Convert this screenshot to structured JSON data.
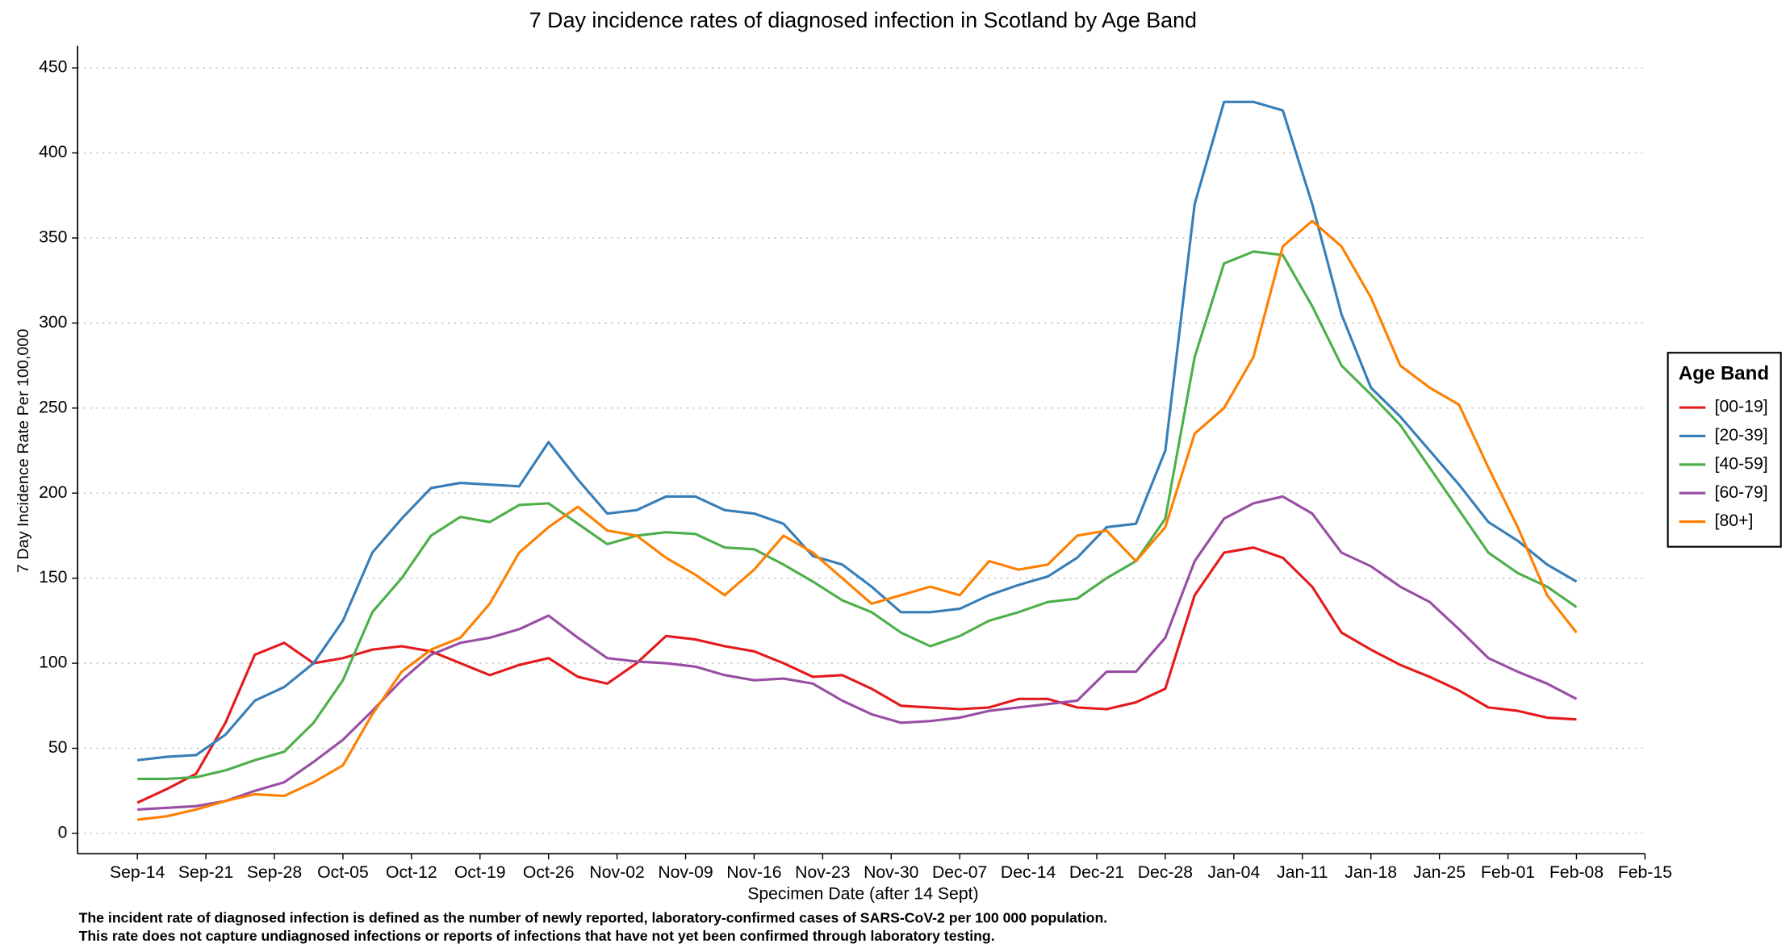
{
  "chart_data": {
    "type": "line",
    "title": "7 Day incidence rates of diagnosed infection in Scotland by Age Band",
    "x_label": "Specimen Date (after 14 Sept)",
    "y_label": "7 Day Incidence Rate Per 100,000",
    "footnote": [
      "The incident rate of diagnosed infection is defined as the number of newly reported, laboratory-confirmed cases of SARS-CoV-2 per 100 000 population.",
      "This rate does not capture undiagnosed infections or reports of infections that have not yet been confirmed through laboratory testing."
    ],
    "legend_title": "Age Band",
    "legend": "right",
    "grid": true,
    "xlim": [
      -6.1,
      154
    ],
    "ylim": [
      -12,
      463
    ],
    "yticks": [
      0,
      50,
      100,
      150,
      200,
      250,
      300,
      350,
      400,
      450
    ],
    "xticks": [
      {
        "value": 0,
        "label": "Sep-14"
      },
      {
        "value": 7,
        "label": "Sep-21"
      },
      {
        "value": 14,
        "label": "Sep-28"
      },
      {
        "value": 21,
        "label": "Oct-05"
      },
      {
        "value": 28,
        "label": "Oct-12"
      },
      {
        "value": 35,
        "label": "Oct-19"
      },
      {
        "value": 42,
        "label": "Oct-26"
      },
      {
        "value": 49,
        "label": "Nov-02"
      },
      {
        "value": 56,
        "label": "Nov-09"
      },
      {
        "value": 63,
        "label": "Nov-16"
      },
      {
        "value": 70,
        "label": "Nov-23"
      },
      {
        "value": 77,
        "label": "Nov-30"
      },
      {
        "value": 84,
        "label": "Dec-07"
      },
      {
        "value": 91,
        "label": "Dec-14"
      },
      {
        "value": 98,
        "label": "Dec-21"
      },
      {
        "value": 105,
        "label": "Dec-28"
      },
      {
        "value": 112,
        "label": "Jan-04"
      },
      {
        "value": 119,
        "label": "Jan-11"
      },
      {
        "value": 126,
        "label": "Jan-18"
      },
      {
        "value": 133,
        "label": "Jan-25"
      },
      {
        "value": 140,
        "label": "Feb-01"
      },
      {
        "value": 147,
        "label": "Feb-08"
      },
      {
        "value": 154,
        "label": "Feb-15"
      }
    ],
    "x": [
      0,
      3,
      6,
      9,
      12,
      15,
      18,
      21,
      24,
      27,
      30,
      33,
      36,
      39,
      42,
      45,
      48,
      51,
      54,
      57,
      60,
      63,
      66,
      69,
      72,
      75,
      78,
      81,
      84,
      87,
      90,
      93,
      96,
      99,
      102,
      105,
      108,
      111,
      114,
      117,
      120,
      123,
      126,
      129,
      132,
      135,
      138,
      141,
      144,
      147
    ],
    "series": [
      {
        "name": "[00-19]",
        "color": "#e41a1c",
        "values": [
          18,
          26,
          35,
          65,
          105,
          112,
          100,
          103,
          108,
          110,
          107,
          100,
          93,
          99,
          103,
          92,
          88,
          100,
          116,
          114,
          110,
          107,
          100,
          92,
          93,
          85,
          75,
          74,
          73,
          74,
          79,
          79,
          74,
          73,
          77,
          85,
          140,
          165,
          168,
          162,
          145,
          118,
          108,
          99,
          92,
          84,
          74,
          72,
          68,
          67
        ]
      },
      {
        "name": "[20-39]",
        "color": "#377eb8",
        "values": [
          43,
          45,
          46,
          58,
          78,
          86,
          100,
          125,
          165,
          185,
          203,
          206,
          205,
          204,
          230,
          208,
          188,
          190,
          198,
          198,
          190,
          188,
          182,
          163,
          158,
          145,
          130,
          130,
          132,
          140,
          146,
          151,
          162,
          180,
          182,
          225,
          370,
          430,
          430,
          425,
          370,
          305,
          262,
          245,
          225,
          205,
          183,
          172,
          158,
          148
        ]
      },
      {
        "name": "[40-59]",
        "color": "#4daf4a",
        "values": [
          32,
          32,
          33,
          37,
          43,
          48,
          65,
          90,
          130,
          150,
          175,
          186,
          183,
          193,
          194,
          182,
          170,
          175,
          177,
          176,
          168,
          167,
          158,
          148,
          137,
          130,
          118,
          110,
          116,
          125,
          130,
          136,
          138,
          150,
          160,
          185,
          280,
          335,
          342,
          340,
          310,
          275,
          258,
          240,
          215,
          190,
          165,
          153,
          145,
          133
        ]
      },
      {
        "name": "[60-79]",
        "color": "#984ea3",
        "values": [
          14,
          15,
          16,
          19,
          25,
          30,
          42,
          55,
          72,
          90,
          105,
          112,
          115,
          120,
          128,
          115,
          103,
          101,
          100,
          98,
          93,
          90,
          91,
          88,
          78,
          70,
          65,
          66,
          68,
          72,
          74,
          76,
          78,
          95,
          95,
          115,
          160,
          185,
          194,
          198,
          188,
          165,
          157,
          145,
          136,
          120,
          103,
          95,
          88,
          79
        ]
      },
      {
        "name": "[80+]",
        "color": "#ff7f00",
        "values": [
          8,
          10,
          14,
          19,
          23,
          22,
          30,
          40,
          70,
          95,
          108,
          115,
          135,
          165,
          180,
          192,
          178,
          175,
          162,
          152,
          140,
          155,
          175,
          165,
          150,
          135,
          140,
          145,
          140,
          160,
          155,
          158,
          175,
          178,
          160,
          180,
          235,
          250,
          280,
          345,
          360,
          345,
          315,
          275,
          262,
          252,
          215,
          180,
          140,
          118
        ]
      }
    ]
  }
}
